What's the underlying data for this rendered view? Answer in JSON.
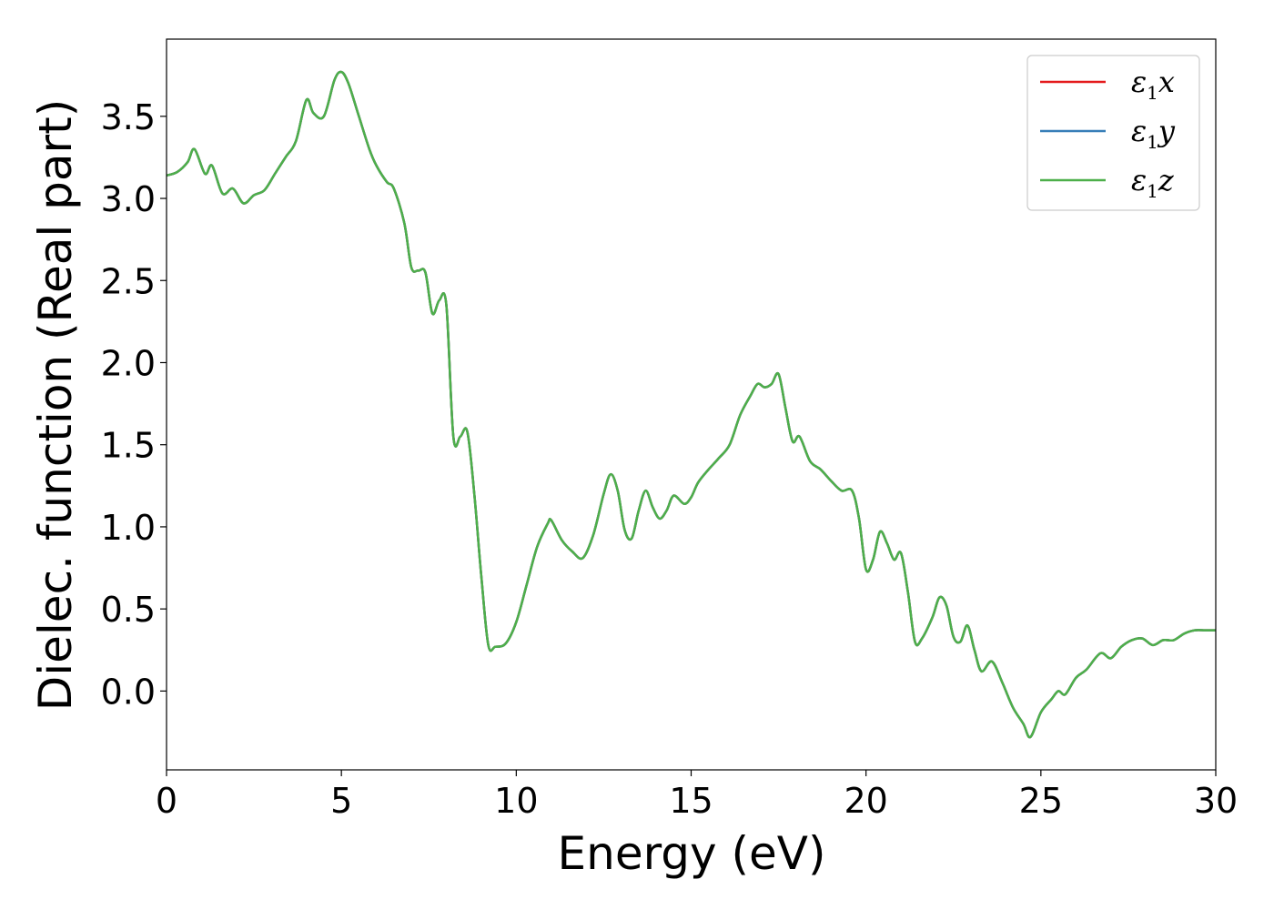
{
  "chart_data": {
    "type": "line",
    "xlabel": "Energy (eV)",
    "ylabel": "Dielec. function (Real part)",
    "xlim": [
      0,
      30
    ],
    "ylim": [
      -0.48,
      3.97
    ],
    "xticks": [
      0,
      5,
      10,
      15,
      20,
      25,
      30
    ],
    "xtick_labels": [
      "0",
      "5",
      "10",
      "15",
      "20",
      "25",
      "30"
    ],
    "yticks": [
      0.0,
      0.5,
      1.0,
      1.5,
      2.0,
      2.5,
      3.0,
      3.5
    ],
    "ytick_labels": [
      "0.0",
      "0.5",
      "1.0",
      "1.5",
      "2.0",
      "2.5",
      "3.0",
      "3.5"
    ],
    "grid": false,
    "legend_position": "top-right",
    "x": [
      0,
      0.3,
      0.6,
      0.8,
      1.1,
      1.3,
      1.6,
      1.9,
      2.2,
      2.5,
      2.8,
      3.1,
      3.4,
      3.7,
      4.0,
      4.2,
      4.5,
      4.8,
      5.0,
      5.2,
      5.5,
      5.8,
      6.0,
      6.3,
      6.5,
      6.8,
      7.0,
      7.2,
      7.4,
      7.6,
      7.8,
      8.0,
      8.2,
      8.4,
      8.6,
      8.8,
      9.0,
      9.2,
      9.4,
      9.7,
      10.0,
      10.3,
      10.6,
      10.9,
      11.0,
      11.3,
      11.6,
      11.9,
      12.2,
      12.5,
      12.7,
      12.9,
      13.1,
      13.3,
      13.5,
      13.7,
      13.9,
      14.1,
      14.3,
      14.5,
      14.8,
      15.0,
      15.2,
      15.5,
      15.8,
      16.1,
      16.4,
      16.7,
      16.9,
      17.1,
      17.3,
      17.5,
      17.7,
      17.9,
      18.1,
      18.4,
      18.7,
      19.0,
      19.3,
      19.6,
      19.8,
      20.0,
      20.2,
      20.4,
      20.6,
      20.8,
      21.0,
      21.2,
      21.4,
      21.6,
      21.9,
      22.1,
      22.3,
      22.5,
      22.7,
      22.9,
      23.1,
      23.3,
      23.6,
      23.9,
      24.2,
      24.5,
      24.7,
      25.0,
      25.3,
      25.5,
      25.7,
      26.0,
      26.3,
      26.7,
      27.0,
      27.3,
      27.6,
      27.9,
      28.2,
      28.5,
      28.8,
      29.1,
      29.4,
      29.7,
      30.0
    ],
    "series": [
      {
        "name": "ε1x",
        "values": [
          3.14,
          3.16,
          3.22,
          3.3,
          3.15,
          3.2,
          3.03,
          3.06,
          2.97,
          3.02,
          3.05,
          3.15,
          3.25,
          3.35,
          3.6,
          3.52,
          3.5,
          3.72,
          3.77,
          3.7,
          3.5,
          3.3,
          3.2,
          3.1,
          3.06,
          2.85,
          2.58,
          2.56,
          2.55,
          2.3,
          2.38,
          2.35,
          1.55,
          1.55,
          1.58,
          1.2,
          0.7,
          0.28,
          0.27,
          0.29,
          0.42,
          0.65,
          0.88,
          1.02,
          1.04,
          0.92,
          0.85,
          0.81,
          0.95,
          1.2,
          1.32,
          1.22,
          0.98,
          0.93,
          1.1,
          1.22,
          1.12,
          1.05,
          1.1,
          1.19,
          1.14,
          1.18,
          1.27,
          1.35,
          1.42,
          1.5,
          1.68,
          1.8,
          1.87,
          1.85,
          1.87,
          1.93,
          1.72,
          1.52,
          1.55,
          1.4,
          1.35,
          1.28,
          1.22,
          1.22,
          1.05,
          0.74,
          0.8,
          0.97,
          0.9,
          0.8,
          0.84,
          0.6,
          0.3,
          0.32,
          0.45,
          0.57,
          0.52,
          0.33,
          0.3,
          0.4,
          0.25,
          0.12,
          0.18,
          0.05,
          -0.1,
          -0.2,
          -0.28,
          -0.13,
          -0.05,
          0.0,
          -0.02,
          0.08,
          0.13,
          0.23,
          0.2,
          0.27,
          0.31,
          0.32,
          0.28,
          0.31,
          0.31,
          0.35,
          0.37,
          0.37,
          0.37
        ],
        "color": "#e41a1c"
      },
      {
        "name": "ε1y",
        "values": [
          3.14,
          3.16,
          3.22,
          3.3,
          3.15,
          3.2,
          3.03,
          3.06,
          2.97,
          3.02,
          3.05,
          3.15,
          3.25,
          3.35,
          3.6,
          3.52,
          3.5,
          3.72,
          3.77,
          3.7,
          3.5,
          3.3,
          3.2,
          3.1,
          3.06,
          2.85,
          2.58,
          2.56,
          2.55,
          2.3,
          2.38,
          2.35,
          1.55,
          1.55,
          1.58,
          1.2,
          0.7,
          0.28,
          0.27,
          0.29,
          0.42,
          0.65,
          0.88,
          1.02,
          1.04,
          0.92,
          0.85,
          0.81,
          0.95,
          1.2,
          1.32,
          1.22,
          0.98,
          0.93,
          1.1,
          1.22,
          1.12,
          1.05,
          1.1,
          1.19,
          1.14,
          1.18,
          1.27,
          1.35,
          1.42,
          1.5,
          1.68,
          1.8,
          1.87,
          1.85,
          1.87,
          1.93,
          1.72,
          1.52,
          1.55,
          1.4,
          1.35,
          1.28,
          1.22,
          1.22,
          1.05,
          0.74,
          0.8,
          0.97,
          0.9,
          0.8,
          0.84,
          0.6,
          0.3,
          0.32,
          0.45,
          0.57,
          0.52,
          0.33,
          0.3,
          0.4,
          0.25,
          0.12,
          0.18,
          0.05,
          -0.1,
          -0.2,
          -0.28,
          -0.13,
          -0.05,
          0.0,
          -0.02,
          0.08,
          0.13,
          0.23,
          0.2,
          0.27,
          0.31,
          0.32,
          0.28,
          0.31,
          0.31,
          0.35,
          0.37,
          0.37,
          0.37
        ],
        "color": "#377eb8"
      },
      {
        "name": "ε1z",
        "values": [
          3.14,
          3.16,
          3.22,
          3.3,
          3.15,
          3.2,
          3.03,
          3.06,
          2.97,
          3.02,
          3.05,
          3.15,
          3.25,
          3.35,
          3.6,
          3.52,
          3.5,
          3.72,
          3.77,
          3.7,
          3.5,
          3.3,
          3.2,
          3.1,
          3.06,
          2.85,
          2.58,
          2.56,
          2.55,
          2.3,
          2.38,
          2.35,
          1.55,
          1.55,
          1.58,
          1.2,
          0.7,
          0.28,
          0.27,
          0.29,
          0.42,
          0.65,
          0.88,
          1.02,
          1.04,
          0.92,
          0.85,
          0.81,
          0.95,
          1.2,
          1.32,
          1.22,
          0.98,
          0.93,
          1.1,
          1.22,
          1.12,
          1.05,
          1.1,
          1.19,
          1.14,
          1.18,
          1.27,
          1.35,
          1.42,
          1.5,
          1.68,
          1.8,
          1.87,
          1.85,
          1.87,
          1.93,
          1.72,
          1.52,
          1.55,
          1.4,
          1.35,
          1.28,
          1.22,
          1.22,
          1.05,
          0.74,
          0.8,
          0.97,
          0.9,
          0.8,
          0.84,
          0.6,
          0.3,
          0.32,
          0.45,
          0.57,
          0.52,
          0.33,
          0.3,
          0.4,
          0.25,
          0.12,
          0.18,
          0.05,
          -0.1,
          -0.2,
          -0.28,
          -0.13,
          -0.05,
          0.0,
          -0.02,
          0.08,
          0.13,
          0.23,
          0.2,
          0.27,
          0.31,
          0.32,
          0.28,
          0.31,
          0.31,
          0.35,
          0.37,
          0.37,
          0.37
        ],
        "color": "#4daf4a"
      }
    ]
  },
  "legend": {
    "entries": [
      {
        "base": "ε",
        "sub": "1",
        "var": "x",
        "color": "#e41a1c"
      },
      {
        "base": "ε",
        "sub": "1",
        "var": "y",
        "color": "#377eb8"
      },
      {
        "base": "ε",
        "sub": "1",
        "var": "z",
        "color": "#4daf4a"
      }
    ]
  }
}
